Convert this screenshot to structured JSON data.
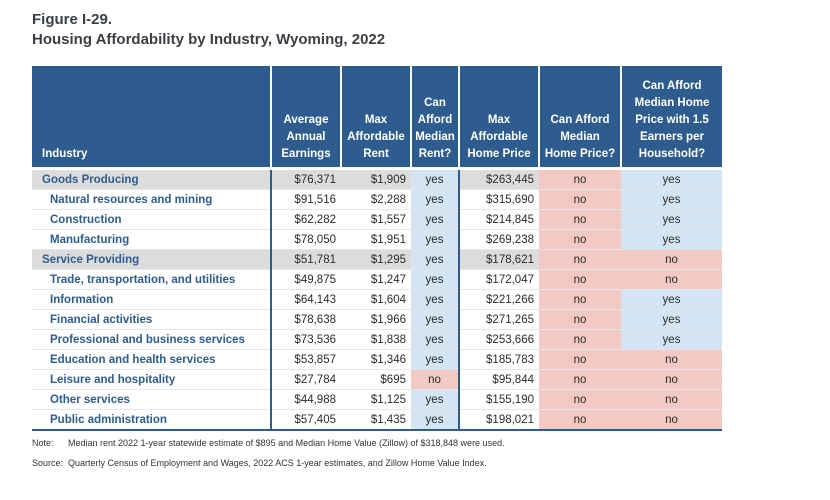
{
  "figure_label": "Figure I-29.",
  "title": "Housing Affordability by Industry, Wyoming, 2022",
  "columns": [
    "Industry",
    "Average Annual Earnings",
    "Max Affordable Rent",
    "Can Afford Median Rent?",
    "Max Affordable Home Price",
    "Can Afford Median Home Price?",
    "Can Afford Median Home Price with 1.5 Earners per Household?"
  ],
  "rows": [
    {
      "industry": "Goods Producing",
      "group": true,
      "earnings": "$76,371",
      "rent": "$1,909",
      "afford_rent": "yes",
      "home_price": "$263,445",
      "afford_home": "no",
      "afford_home_15": "yes"
    },
    {
      "industry": "Natural resources and mining",
      "group": false,
      "earnings": "$91,516",
      "rent": "$2,288",
      "afford_rent": "yes",
      "home_price": "$315,690",
      "afford_home": "no",
      "afford_home_15": "yes"
    },
    {
      "industry": "Construction",
      "group": false,
      "earnings": "$62,282",
      "rent": "$1,557",
      "afford_rent": "yes",
      "home_price": "$214,845",
      "afford_home": "no",
      "afford_home_15": "yes"
    },
    {
      "industry": "Manufacturing",
      "group": false,
      "earnings": "$78,050",
      "rent": "$1,951",
      "afford_rent": "yes",
      "home_price": "$269,238",
      "afford_home": "no",
      "afford_home_15": "yes"
    },
    {
      "industry": "Service Providing",
      "group": true,
      "earnings": "$51,781",
      "rent": "$1,295",
      "afford_rent": "yes",
      "home_price": "$178,621",
      "afford_home": "no",
      "afford_home_15": "no"
    },
    {
      "industry": "Trade, transportation, and utilities",
      "group": false,
      "earnings": "$49,875",
      "rent": "$1,247",
      "afford_rent": "yes",
      "home_price": "$172,047",
      "afford_home": "no",
      "afford_home_15": "no"
    },
    {
      "industry": "Information",
      "group": false,
      "earnings": "$64,143",
      "rent": "$1,604",
      "afford_rent": "yes",
      "home_price": "$221,266",
      "afford_home": "no",
      "afford_home_15": "yes"
    },
    {
      "industry": "Financial activities",
      "group": false,
      "earnings": "$78,638",
      "rent": "$1,966",
      "afford_rent": "yes",
      "home_price": "$271,265",
      "afford_home": "no",
      "afford_home_15": "yes"
    },
    {
      "industry": "Professional and business services",
      "group": false,
      "earnings": "$73,536",
      "rent": "$1,838",
      "afford_rent": "yes",
      "home_price": "$253,666",
      "afford_home": "no",
      "afford_home_15": "yes"
    },
    {
      "industry": "Education and health services",
      "group": false,
      "earnings": "$53,857",
      "rent": "$1,346",
      "afford_rent": "yes",
      "home_price": "$185,783",
      "afford_home": "no",
      "afford_home_15": "no"
    },
    {
      "industry": "Leisure and hospitality",
      "group": false,
      "earnings": "$27,784",
      "rent": "$695",
      "afford_rent": "no",
      "home_price": "$95,844",
      "afford_home": "no",
      "afford_home_15": "no"
    },
    {
      "industry": "Other services",
      "group": false,
      "earnings": "$44,988",
      "rent": "$1,125",
      "afford_rent": "yes",
      "home_price": "$155,190",
      "afford_home": "no",
      "afford_home_15": "no"
    },
    {
      "industry": "Public administration",
      "group": false,
      "earnings": "$57,405",
      "rent": "$1,435",
      "afford_rent": "yes",
      "home_price": "$198,021",
      "afford_home": "no",
      "afford_home_15": "no"
    }
  ],
  "note_label": "Note:",
  "note": "Median rent 2022 1-year statewide estimate of $895 and Median Home Value (Zillow) of $318,848 were used.",
  "source_label": "Source:",
  "source": "Quarterly Census of Employment and Wages, 2022 ACS 1-year estimates, and Zillow Home Value Index.",
  "colors": {
    "header": "#2e5c8e",
    "yes": "#d3e4f3",
    "no": "#f3c9c3",
    "group_row": "#dcdcdc"
  }
}
